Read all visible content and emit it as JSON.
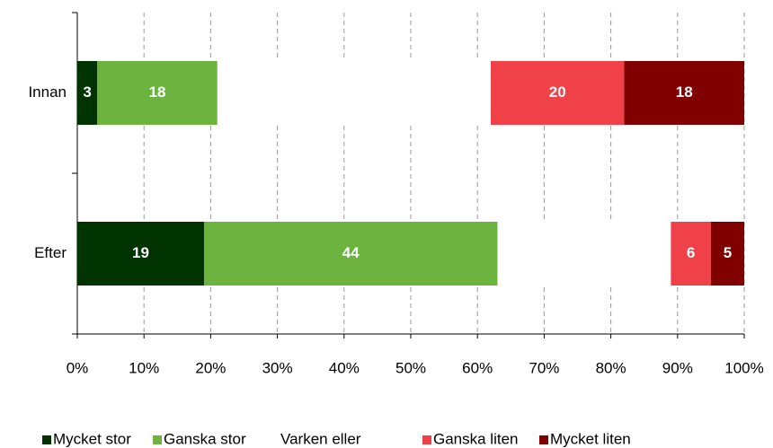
{
  "chart_data": {
    "type": "stacked_barh",
    "categories": [
      "Innan",
      "Efter"
    ],
    "series": [
      {
        "name": "Mycket stor",
        "color": "#003300",
        "values": [
          3,
          19
        ]
      },
      {
        "name": "Ganska stor",
        "color": "#6db33f",
        "values": [
          18,
          44
        ]
      },
      {
        "name": "Varken eller",
        "color": "#ffffff",
        "values": [
          41,
          26
        ],
        "labels": false
      },
      {
        "name": "Ganska liten",
        "color": "#f04048",
        "values": [
          20,
          6
        ]
      },
      {
        "name": "Mycket liten",
        "color": "#800000",
        "values": [
          18,
          5
        ]
      }
    ],
    "xlim": [
      0,
      100
    ],
    "xticks": [
      {
        "value": 0,
        "label": "0%"
      },
      {
        "value": 10,
        "label": "10%"
      },
      {
        "value": 20,
        "label": "20%"
      },
      {
        "value": 30,
        "label": "30%"
      },
      {
        "value": 40,
        "label": "40%"
      },
      {
        "value": 50,
        "label": "50%"
      },
      {
        "value": 60,
        "label": "60%"
      },
      {
        "value": 70,
        "label": "70%"
      },
      {
        "value": 80,
        "label": "80%"
      },
      {
        "value": 90,
        "label": "90%"
      },
      {
        "value": 100,
        "label": "100%"
      }
    ],
    "grid": true,
    "legend": "bottom"
  }
}
